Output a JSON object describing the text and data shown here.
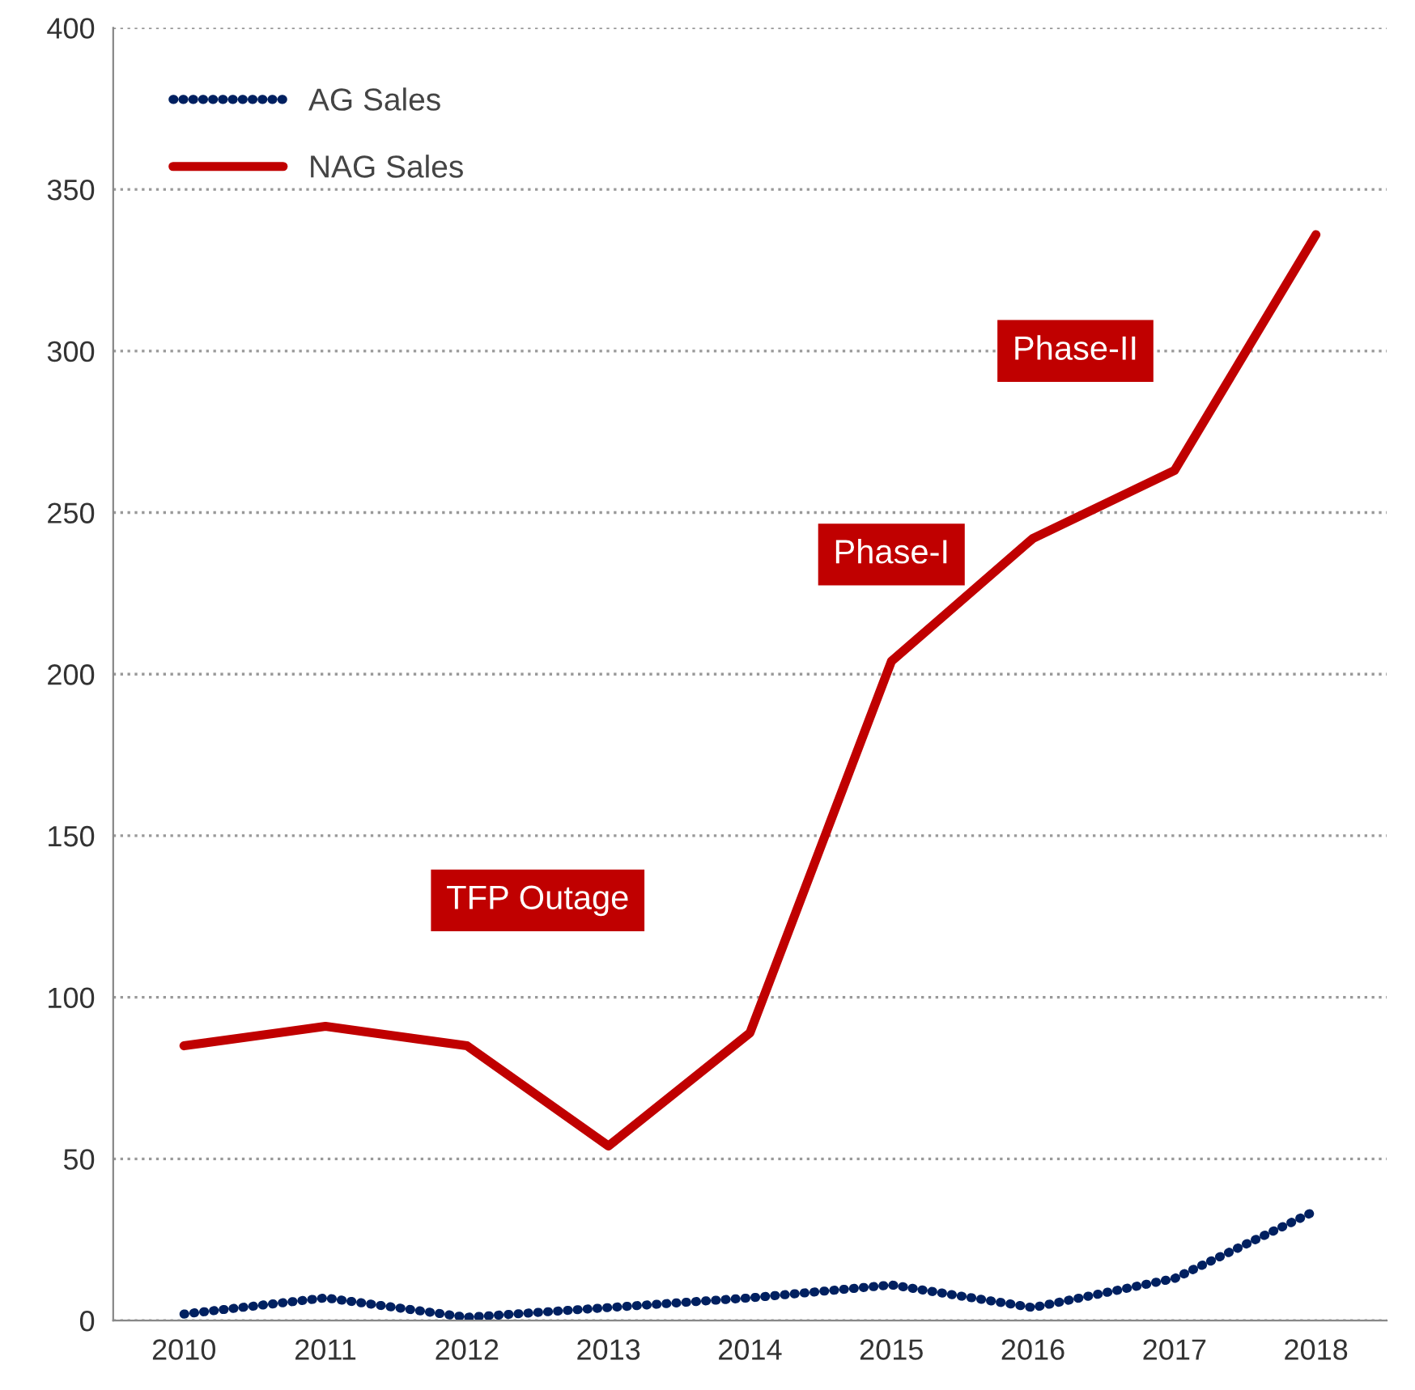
{
  "chart_data": {
    "type": "line",
    "categories": [
      "2010",
      "2011",
      "2012",
      "2013",
      "2014",
      "2015",
      "2016",
      "2017",
      "2018"
    ],
    "series": [
      {
        "name": "AG Sales",
        "color": "#002060",
        "line_style": "dotted",
        "values": [
          2,
          7,
          1,
          4,
          7,
          11,
          4,
          13,
          34
        ]
      },
      {
        "name": "NAG Sales",
        "color": "#c00000",
        "line_style": "solid",
        "values": [
          85,
          91,
          85,
          54,
          89,
          204,
          242,
          263,
          336
        ]
      }
    ],
    "ylim": [
      0,
      400
    ],
    "yticks": [
      0,
      50,
      100,
      150,
      200,
      250,
      300,
      350,
      400
    ],
    "grid": "y",
    "legend": "top left",
    "marker": "none",
    "annotations": [
      "TFP Outage",
      "Phase-I",
      "Phase-II"
    ]
  }
}
